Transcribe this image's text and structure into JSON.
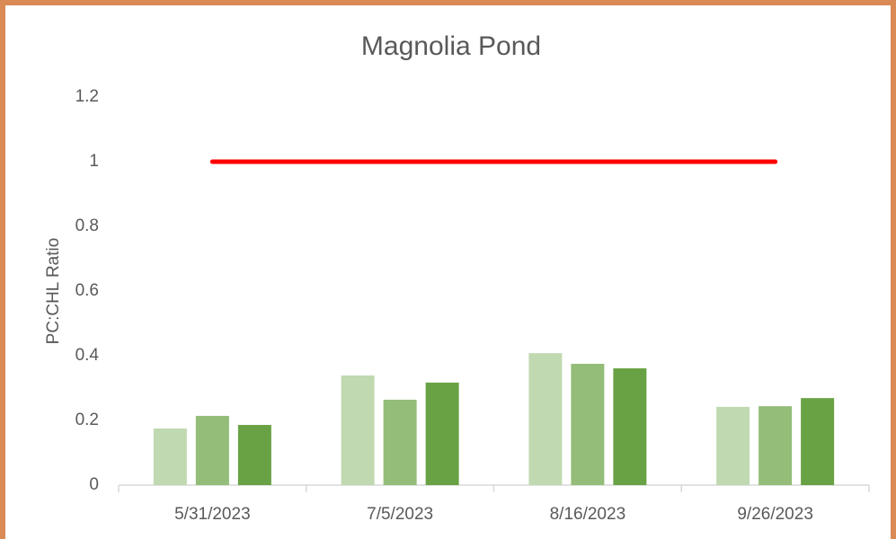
{
  "chart_data": {
    "type": "bar",
    "title": "Magnolia Pond",
    "y_label": "PC:CHL Ratio",
    "categories": [
      "5/31/2023",
      "7/5/2023",
      "8/16/2023",
      "9/26/2023"
    ],
    "series": [
      {
        "color": "#c0d9b0",
        "values": [
          0.175,
          0.339,
          0.408,
          0.242
        ]
      },
      {
        "color": "#93bd78",
        "values": [
          0.214,
          0.264,
          0.375,
          0.244
        ]
      },
      {
        "color": "#69a244",
        "values": [
          0.186,
          0.317,
          0.361,
          0.269
        ]
      },
      {
        "type": "line",
        "color": "#ff0000",
        "values": [
          1,
          1,
          1,
          1
        ]
      }
    ],
    "ylim": [
      0,
      1.2
    ],
    "yticks": [
      0,
      0.2,
      0.4,
      0.6,
      0.8,
      1,
      1.2
    ],
    "grid": false
  }
}
